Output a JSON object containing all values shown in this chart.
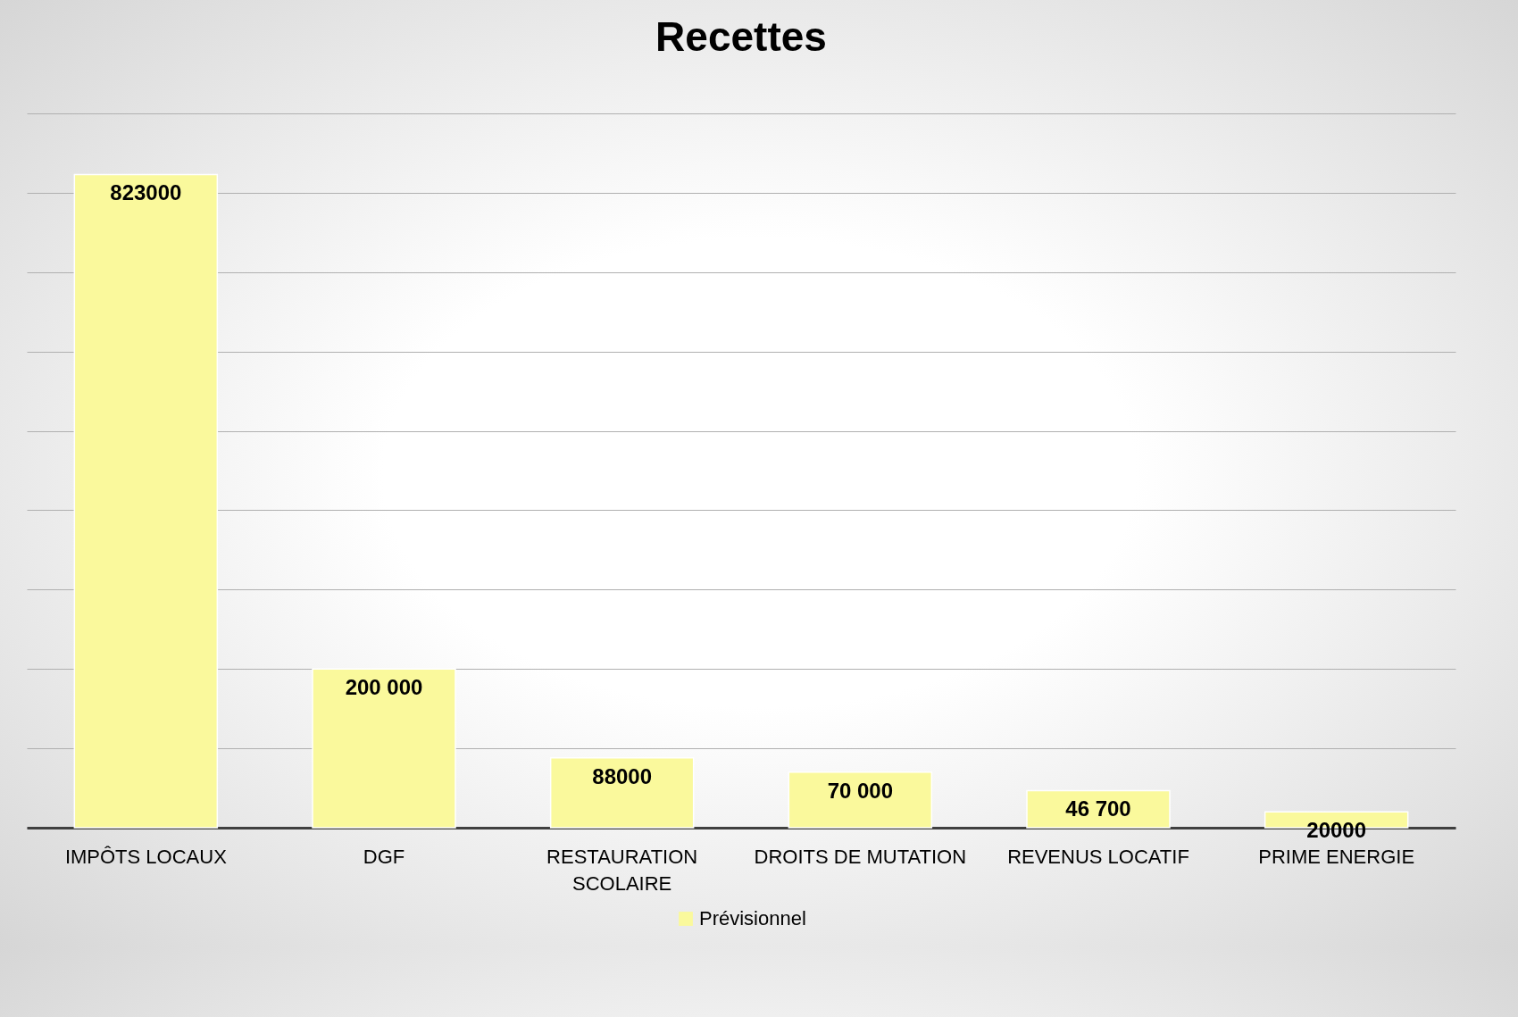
{
  "chart_data": {
    "type": "bar",
    "title": "Recettes",
    "categories": [
      "IMPÔTS LOCAUX",
      "DGF",
      "RESTAURATION SCOLAIRE",
      "DROITS DE MUTATION",
      "REVENUS LOCATIF",
      "PRIME ENERGIE"
    ],
    "series": [
      {
        "name": "Prévisionnel",
        "color": "#faf99c",
        "values": [
          823000,
          200000,
          88000,
          70000,
          46700,
          20000
        ],
        "value_labels": [
          "823000",
          "200 000",
          "88000",
          "70 000",
          "46 700",
          "20000"
        ]
      }
    ],
    "ylim": [
      0,
      900000
    ],
    "yticks": [
      {
        "value": 0,
        "label": null
      },
      {
        "value": 100000,
        "label": null
      },
      {
        "value": 200000,
        "label": null
      },
      {
        "value": 300000,
        "label": null
      },
      {
        "value": 400000,
        "label": null
      },
      {
        "value": 500000,
        "label": null
      },
      {
        "value": 600000,
        "label": null
      },
      {
        "value": 700000,
        "label": null
      },
      {
        "value": 800000,
        "label": null
      },
      {
        "value": 900000,
        "label": null
      }
    ],
    "tick_labels": "x",
    "grid": "y",
    "legend": "bottom"
  }
}
